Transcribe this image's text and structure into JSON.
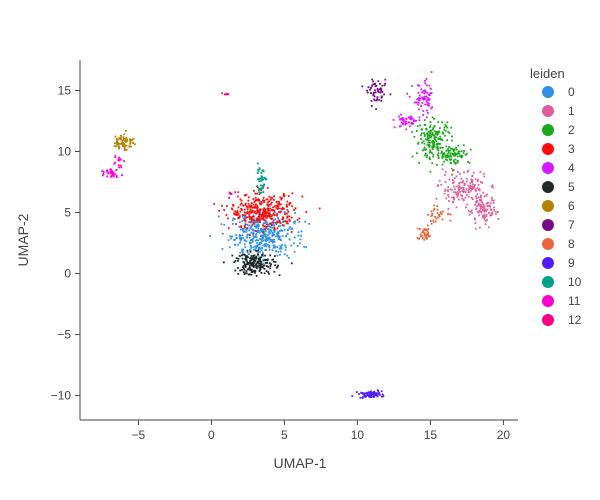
{
  "chart_data": {
    "type": "scatter",
    "title": "",
    "xlabel": "UMAP-1",
    "ylabel": "UMAP-2",
    "xlim": [
      -9,
      21
    ],
    "ylim": [
      -12,
      17.5
    ],
    "xticks": [
      -5,
      0,
      5,
      10,
      15,
      20
    ],
    "yticks": [
      -10,
      -5,
      0,
      5,
      10,
      15
    ],
    "grid": false,
    "legend_title": "leiden",
    "legend_position": "right",
    "series": [
      {
        "name": "0",
        "color": "#2E91E5",
        "clusters": [
          {
            "cx": 3.5,
            "cy": 3.2,
            "sx": 1.1,
            "sy": 0.9,
            "n": 420
          }
        ]
      },
      {
        "name": "1",
        "color": "#E15F99",
        "clusters": [
          {
            "cx": 17.2,
            "cy": 7.0,
            "sx": 0.8,
            "sy": 0.7,
            "n": 150
          },
          {
            "cx": 18.6,
            "cy": 5.2,
            "sx": 0.5,
            "sy": 0.6,
            "n": 110
          }
        ]
      },
      {
        "name": "2",
        "color": "#1CA71C",
        "clusters": [
          {
            "cx": 15.2,
            "cy": 11.0,
            "sx": 0.6,
            "sy": 0.8,
            "n": 170
          },
          {
            "cx": 16.5,
            "cy": 9.8,
            "sx": 0.6,
            "sy": 0.4,
            "n": 90
          }
        ]
      },
      {
        "name": "3",
        "color": "#FB0D0D",
        "clusters": [
          {
            "cx": 3.5,
            "cy": 5.1,
            "sx": 1.1,
            "sy": 0.7,
            "n": 330
          }
        ]
      },
      {
        "name": "4",
        "color": "#DA16FF",
        "clusters": [
          {
            "cx": 14.6,
            "cy": 14.2,
            "sx": 0.4,
            "sy": 0.7,
            "n": 70
          },
          {
            "cx": 13.4,
            "cy": 12.5,
            "sx": 0.4,
            "sy": 0.3,
            "n": 50
          }
        ]
      },
      {
        "name": "5",
        "color": "#222A2A",
        "clusters": [
          {
            "cx": 3.0,
            "cy": 0.8,
            "sx": 0.7,
            "sy": 0.45,
            "n": 190
          }
        ]
      },
      {
        "name": "6",
        "color": "#B68100",
        "clusters": [
          {
            "cx": -6.0,
            "cy": 10.8,
            "sx": 0.35,
            "sy": 0.35,
            "n": 70
          }
        ]
      },
      {
        "name": "7",
        "color": "#750D86",
        "clusters": [
          {
            "cx": 11.4,
            "cy": 14.8,
            "sx": 0.35,
            "sy": 0.45,
            "n": 55
          }
        ]
      },
      {
        "name": "8",
        "color": "#EB663B",
        "clusters": [
          {
            "cx": 14.6,
            "cy": 3.2,
            "sx": 0.25,
            "sy": 0.3,
            "n": 40
          },
          {
            "cx": 15.5,
            "cy": 4.8,
            "sx": 0.5,
            "sy": 0.3,
            "n": 30
          }
        ]
      },
      {
        "name": "9",
        "color": "#511CFB",
        "clusters": [
          {
            "cx": 10.9,
            "cy": -9.9,
            "sx": 0.4,
            "sy": 0.15,
            "n": 70
          }
        ]
      },
      {
        "name": "10",
        "color": "#00A08B",
        "clusters": [
          {
            "cx": 3.4,
            "cy": 7.6,
            "sx": 0.2,
            "sy": 0.6,
            "n": 45
          }
        ]
      },
      {
        "name": "11",
        "color": "#FB00D1",
        "clusters": [
          {
            "cx": -6.8,
            "cy": 8.3,
            "sx": 0.25,
            "sy": 0.2,
            "n": 35
          },
          {
            "cx": -6.4,
            "cy": 9.3,
            "sx": 0.2,
            "sy": 0.3,
            "n": 15
          }
        ]
      },
      {
        "name": "12",
        "color": "#FC0080",
        "clusters": [
          {
            "cx": 0.9,
            "cy": 14.7,
            "sx": 0.1,
            "sy": 0.08,
            "n": 6
          },
          {
            "cx": 1.5,
            "cy": 6.6,
            "sx": 0.2,
            "sy": 0.15,
            "n": 6
          }
        ]
      }
    ]
  }
}
